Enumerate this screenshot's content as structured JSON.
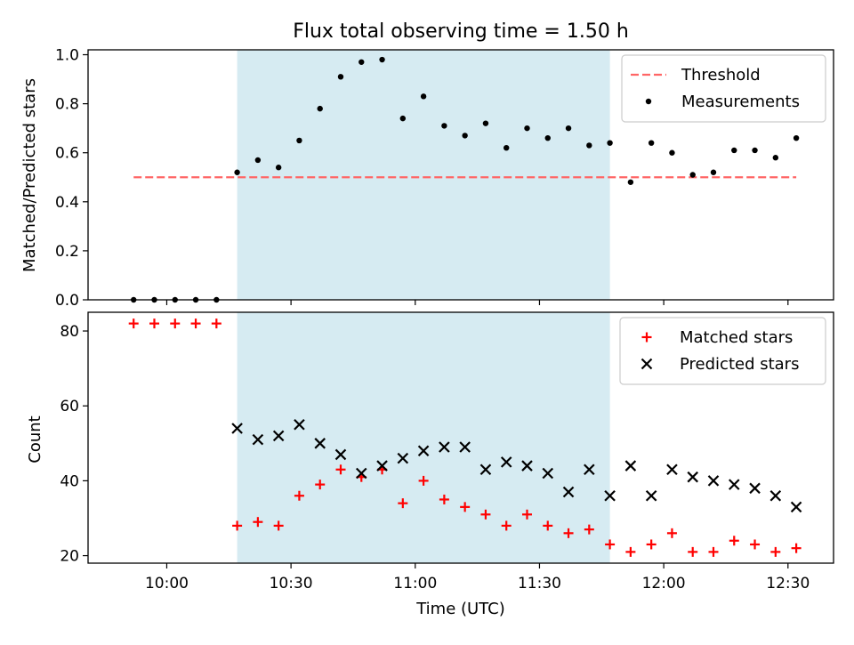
{
  "title": "Flux total observing time = 1.50 h",
  "colors": {
    "shade": "#add8e6",
    "threshold": "#ff6666",
    "measurement": "#000000",
    "matched": "#ff0000",
    "predicted": "#000000"
  },
  "chart_data": [
    {
      "type": "scatter",
      "panel": "top",
      "ylabel": "Matched/Predicted stars",
      "xlabel": "",
      "ylim": [
        0.0,
        1.02
      ],
      "yticks": [
        "0.0",
        "0.2",
        "0.4",
        "0.6",
        "0.8",
        "1.0"
      ],
      "ytick_values": [
        0.0,
        0.2,
        0.4,
        0.6,
        0.8,
        1.0
      ],
      "xlim": [
        "09:41",
        "12:41"
      ],
      "shaded_interval": [
        "10:17",
        "11:47"
      ],
      "legend_position": "upper right",
      "threshold": {
        "name": "Threshold",
        "value": 0.5,
        "x_range": [
          "09:52",
          "12:32"
        ],
        "style": "dashed"
      },
      "series": [
        {
          "name": "Measurements",
          "marker": "dot",
          "x": [
            "09:52",
            "09:57",
            "10:02",
            "10:07",
            "10:12",
            "10:17",
            "10:22",
            "10:27",
            "10:32",
            "10:37",
            "10:42",
            "10:47",
            "10:52",
            "10:57",
            "11:02",
            "11:07",
            "11:12",
            "11:17",
            "11:22",
            "11:27",
            "11:32",
            "11:37",
            "11:42",
            "11:47",
            "11:52",
            "11:57",
            "12:02",
            "12:07",
            "12:12",
            "12:17",
            "12:22",
            "12:27",
            "12:32"
          ],
          "y": [
            0.0,
            0.0,
            0.0,
            0.0,
            0.0,
            0.52,
            0.57,
            0.54,
            0.65,
            0.78,
            0.91,
            0.97,
            0.98,
            0.74,
            0.83,
            0.71,
            0.67,
            0.72,
            0.62,
            0.7,
            0.66,
            0.7,
            0.63,
            0.64,
            0.48,
            0.64,
            0.6,
            0.51,
            0.52,
            0.61,
            0.61,
            0.58,
            0.66
          ]
        }
      ]
    },
    {
      "type": "scatter",
      "panel": "bottom",
      "ylabel": "Count",
      "xlabel": "Time (UTC)",
      "ylim": [
        18,
        85
      ],
      "yticks": [
        "20",
        "40",
        "60",
        "80"
      ],
      "ytick_values": [
        20,
        40,
        60,
        80
      ],
      "xlim": [
        "09:41",
        "12:41"
      ],
      "xticks": [
        "10:00",
        "10:30",
        "11:00",
        "11:30",
        "12:00",
        "12:30"
      ],
      "shaded_interval": [
        "10:17",
        "11:47"
      ],
      "legend_position": "upper right",
      "series": [
        {
          "name": "Matched stars",
          "marker": "plus",
          "x": [
            "09:52",
            "09:57",
            "10:02",
            "10:07",
            "10:12",
            "10:17",
            "10:22",
            "10:27",
            "10:32",
            "10:37",
            "10:42",
            "10:47",
            "10:52",
            "10:57",
            "11:02",
            "11:07",
            "11:12",
            "11:17",
            "11:22",
            "11:27",
            "11:32",
            "11:37",
            "11:42",
            "11:47",
            "11:52",
            "11:57",
            "12:02",
            "12:07",
            "12:12",
            "12:17",
            "12:22",
            "12:27",
            "12:32"
          ],
          "y": [
            82,
            82,
            82,
            82,
            82,
            28,
            29,
            28,
            36,
            39,
            43,
            41,
            43,
            34,
            40,
            35,
            33,
            31,
            28,
            31,
            28,
            26,
            27,
            23,
            21,
            23,
            26,
            21,
            21,
            24,
            23,
            21,
            22
          ]
        },
        {
          "name": "Predicted stars",
          "marker": "x",
          "x": [
            "10:17",
            "10:22",
            "10:27",
            "10:32",
            "10:37",
            "10:42",
            "10:47",
            "10:52",
            "10:57",
            "11:02",
            "11:07",
            "11:12",
            "11:17",
            "11:22",
            "11:27",
            "11:32",
            "11:37",
            "11:42",
            "11:47",
            "11:52",
            "11:57",
            "12:02",
            "12:07",
            "12:12",
            "12:17",
            "12:22",
            "12:27",
            "12:32"
          ],
          "y": [
            54,
            51,
            52,
            55,
            50,
            47,
            42,
            44,
            46,
            48,
            49,
            49,
            43,
            45,
            44,
            42,
            37,
            43,
            36,
            44,
            36,
            43,
            41,
            40,
            39,
            38,
            36,
            33
          ]
        }
      ]
    }
  ]
}
